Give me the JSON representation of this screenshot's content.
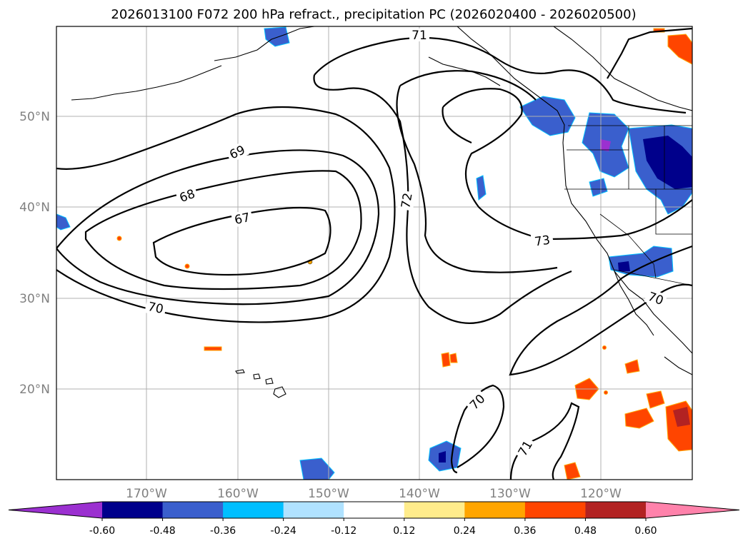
{
  "title": "2026013100 F072 200 hPa refract., precipitation PC (2026020400 - 2026020500)",
  "lat_labels": [
    "50°N",
    "40°N",
    "30°N",
    "20°N"
  ],
  "lon_labels": [
    "170°W",
    "160°W",
    "150°W",
    "140°W",
    "130°W",
    "120°W"
  ],
  "contour_labels": [
    "71",
    "69",
    "68",
    "67",
    "72",
    "73",
    "70",
    "70",
    "70",
    "71"
  ],
  "colorbar": {
    "ticks": [
      "-0.60",
      "-0.48",
      "-0.36",
      "-0.24",
      "-0.12",
      "0.12",
      "0.24",
      "0.36",
      "0.48",
      "0.60"
    ],
    "colors": [
      "#9b30d0",
      "#00008b",
      "#3a5fcd",
      "#00bfff",
      "#b0e2ff",
      "#ffffff",
      "#ffec8b",
      "#ffa500",
      "#ff4500",
      "#b22222",
      "#ff82ab"
    ]
  }
}
